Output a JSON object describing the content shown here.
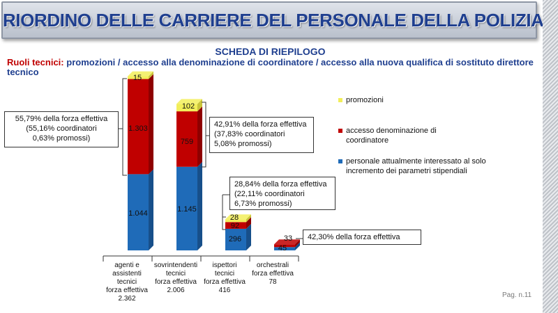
{
  "header": {
    "title": "RIORDINO DELLE CARRIERE DEL PERSONALE DELLA POLIZIA DI STATO"
  },
  "subtitle": "SCHEDA DI RIEPILOGO",
  "description": {
    "lead": "Ruoli tecnici",
    "colon": ":",
    "text": " promozioni / accesso alla denominazione di coordinatore / accesso alla nuova qualifica di sostituto direttore tecnico"
  },
  "legend": {
    "promozioni": "promozioni",
    "coordinatore": "accesso denominazione di coordinatore",
    "stipendiali": "personale attualmente interessato al solo incremento dei parametri stipendiali"
  },
  "colors": {
    "promozioni": "#f2ee5a",
    "coordinatore": "#c00000",
    "stipendiali": "#1f6bb8",
    "title": "#1f3f8f"
  },
  "chart_data": {
    "type": "bar",
    "stacked": true,
    "categories": [
      "agenti e assistenti tecnici forza effettiva 2.362",
      "sovrintendenti tecnici forza effettiva 2.006",
      "ispettori tecnici forza effettiva 416",
      "orchestrali forza effettiva 78"
    ],
    "category_lines": [
      [
        "agenti e",
        "assistenti",
        "tecnici",
        "forza effettiva",
        "2.362"
      ],
      [
        "sovrintendenti",
        "tecnici",
        "forza effettiva",
        "2.006"
      ],
      [
        "ispettori",
        "tecnici",
        "forza effettiva",
        "416"
      ],
      [
        "orchestrali",
        "forza effettiva",
        "78"
      ]
    ],
    "series": [
      {
        "name": "personale attualmente interessato al solo incremento dei parametri stipendiali",
        "values": [
          1044,
          1145,
          296,
          45
        ]
      },
      {
        "name": "accesso denominazione di coordinatore",
        "values": [
          1303,
          759,
          92,
          33
        ]
      },
      {
        "name": "promozioni",
        "values": [
          15,
          102,
          28,
          0
        ]
      }
    ],
    "data_labels": [
      [
        "1.044",
        "1.145",
        "296",
        "45"
      ],
      [
        "1.303",
        "759",
        "92",
        "33"
      ],
      [
        "15",
        "102",
        "28",
        ""
      ]
    ],
    "ylim": [
      0,
      2362
    ],
    "grid": false,
    "legend_position": "right"
  },
  "callouts": {
    "agenti": [
      "55,79% della forza effettiva",
      "(55,16% coordinatori",
      "0,63% promossi)"
    ],
    "sovrintendenti": [
      "42,91% della forza effettiva",
      "(37,83% coordinatori",
      "5,08% promossi)"
    ],
    "ispettori": [
      "28,84% della forza effettiva",
      "(22,11% coordinatori",
      "6,73% promossi)"
    ],
    "orchestrali": [
      "42,30% della forza effettiva"
    ]
  },
  "page": "Pag. n.11"
}
